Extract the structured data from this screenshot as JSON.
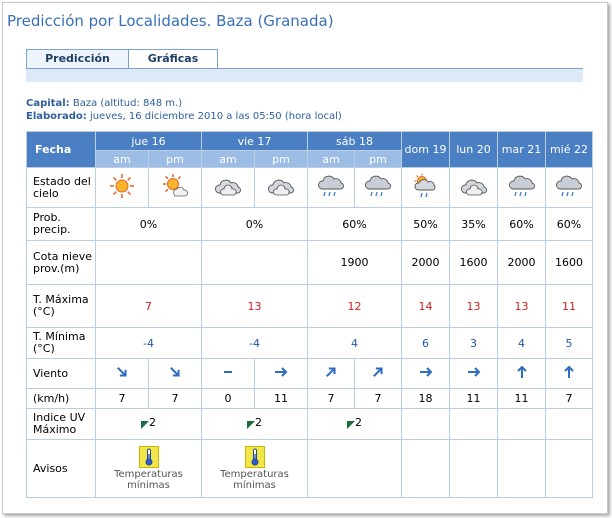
{
  "title": "Predicción por Localidades. Baza (Granada)",
  "tabs": {
    "prediccion": "Predicción",
    "graficas": "Gráficas"
  },
  "info": {
    "capital_label": "Capital:",
    "capital_value": "Baza (altitud: 848 m.)",
    "elaborado_label": "Elaborado:",
    "elaborado_value": "jueves, 16 diciembre 2010 a las 05:50 (hora local)"
  },
  "table": {
    "fecha_label": "Fecha",
    "days": [
      "jue 16",
      "vie 17",
      "sáb 18",
      "dom 19",
      "lun 20",
      "mar 21",
      "mié 22"
    ],
    "am": "am",
    "pm": "pm",
    "row_labels": {
      "estado": "Estado del cielo",
      "prob": "Prob. precip.",
      "cota": "Cota nieve prov.(m)",
      "tmax": "T. Máxima (°C)",
      "tmin": "T. Mínima (°C)",
      "viento": "Viento",
      "kmh": "(km/h)",
      "uv": "Indice UV Máximo",
      "avisos": "Avisos"
    },
    "sky_icons": [
      "sun-icon",
      "sun-cloud-icon",
      "cloud-icon",
      "cloud-icon",
      "cloud-rain-icon",
      "cloud-rain-icon",
      "sun-cloud-rain-icon",
      "cloud-icon",
      "cloud-rain-icon",
      "cloud-rain-icon"
    ],
    "prob": [
      "0%",
      "0%",
      "60%",
      "50%",
      "35%",
      "60%",
      "60%"
    ],
    "cota": [
      "",
      "",
      "1900",
      "2000",
      "1600",
      "2000",
      "1600"
    ],
    "tmax": [
      "7",
      "13",
      "12",
      "14",
      "13",
      "13",
      "11"
    ],
    "tmin": [
      "-4",
      "-4",
      "4",
      "6",
      "3",
      "4",
      "5"
    ],
    "wind_dirs": [
      "NW",
      "NW",
      "C",
      "W",
      "SW",
      "SW",
      "W",
      "W",
      "S",
      "S"
    ],
    "wind_speed": [
      "7",
      "7",
      "0",
      "11",
      "7",
      "7",
      "18",
      "11",
      "11",
      "7"
    ],
    "uv": [
      "2",
      "2",
      "2"
    ],
    "aviso_text": "Temperaturas mínimas",
    "colors": {
      "header": "#4b7fc4",
      "subheader": "#9dbde6",
      "red": "#cc2222",
      "blue": "#2255aa"
    }
  }
}
